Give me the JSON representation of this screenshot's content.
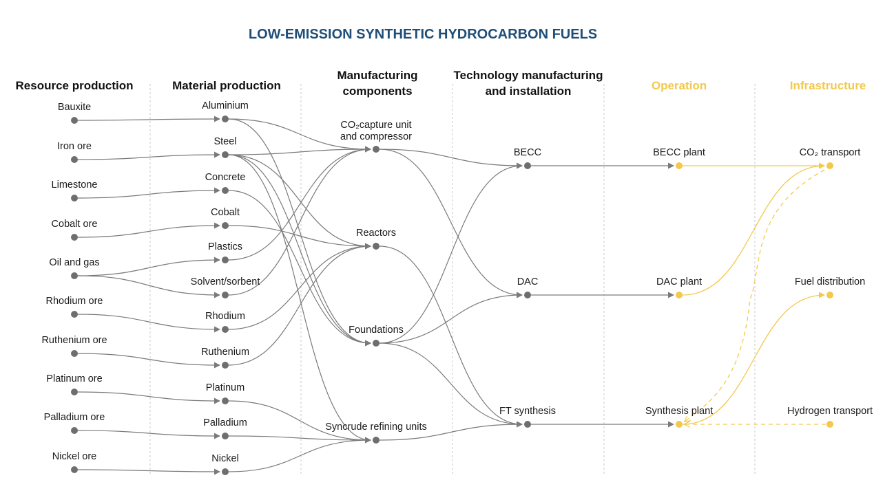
{
  "title": "LOW-EMISSION SYNTHETIC HYDROCARBON FUELS",
  "columns": [
    {
      "id": "resource",
      "lines": [
        "Resource production"
      ],
      "color": "#111111"
    },
    {
      "id": "material",
      "lines": [
        "Material production"
      ],
      "color": "#111111"
    },
    {
      "id": "components",
      "lines": [
        "Manufacturing",
        "components"
      ],
      "color": "#111111"
    },
    {
      "id": "technology",
      "lines": [
        "Technology manufacturing",
        "and installation"
      ],
      "color": "#111111"
    },
    {
      "id": "operation",
      "lines": [
        "Operation"
      ],
      "color": "#f2c94c"
    },
    {
      "id": "infrastructure",
      "lines": [
        "Infrastructure"
      ],
      "color": "#f2c94c"
    }
  ],
  "nodes": [
    {
      "id": "bauxite",
      "label": "Bauxite",
      "column": "resource"
    },
    {
      "id": "ironore",
      "label": "Iron ore",
      "column": "resource"
    },
    {
      "id": "limestone",
      "label": "Limestone",
      "column": "resource"
    },
    {
      "id": "cobaltore",
      "label": "Cobalt ore",
      "column": "resource"
    },
    {
      "id": "oilgas",
      "label": "Oil and gas",
      "column": "resource"
    },
    {
      "id": "rhodiumore",
      "label": "Rhodium ore",
      "column": "resource"
    },
    {
      "id": "rutheniumore",
      "label": "Ruthenium ore",
      "column": "resource"
    },
    {
      "id": "platinumore",
      "label": "Platinum ore",
      "column": "resource"
    },
    {
      "id": "palladiumore",
      "label": "Palladium ore",
      "column": "resource"
    },
    {
      "id": "nickelore",
      "label": "Nickel ore",
      "column": "resource"
    },
    {
      "id": "aluminium",
      "label": "Aluminium",
      "column": "material"
    },
    {
      "id": "steel",
      "label": "Steel",
      "column": "material"
    },
    {
      "id": "concrete",
      "label": "Concrete",
      "column": "material"
    },
    {
      "id": "cobalt",
      "label": "Cobalt",
      "column": "material"
    },
    {
      "id": "plastics",
      "label": "Plastics",
      "column": "material"
    },
    {
      "id": "solvent",
      "label": "Solvent/sorbent",
      "column": "material"
    },
    {
      "id": "rhodium",
      "label": "Rhodium",
      "column": "material"
    },
    {
      "id": "ruthenium",
      "label": "Ruthenium",
      "column": "material"
    },
    {
      "id": "platinum",
      "label": "Platinum",
      "column": "material"
    },
    {
      "id": "palladium",
      "label": "Palladium",
      "column": "material"
    },
    {
      "id": "nickel",
      "label": "Nickel",
      "column": "material"
    },
    {
      "id": "co2capture",
      "lines": [
        "CO₂capture unit",
        "and compressor"
      ],
      "column": "components"
    },
    {
      "id": "reactors",
      "label": "Reactors",
      "column": "components"
    },
    {
      "id": "foundations",
      "label": "Foundations",
      "column": "components"
    },
    {
      "id": "syncrude",
      "label": "Syncrude refining units",
      "column": "components"
    },
    {
      "id": "becc",
      "label": "BECC",
      "column": "technology"
    },
    {
      "id": "dac",
      "label": "DAC",
      "column": "technology"
    },
    {
      "id": "ftsynthesis",
      "label": "FT synthesis",
      "column": "technology"
    },
    {
      "id": "beccplant",
      "label": "BECC plant",
      "column": "operation",
      "color": "#f2c94c"
    },
    {
      "id": "dacplant",
      "label": "DAC plant",
      "column": "operation",
      "color": "#f2c94c"
    },
    {
      "id": "synthesisplant",
      "label": "Synthesis plant",
      "column": "operation",
      "color": "#f2c94c"
    },
    {
      "id": "co2transport",
      "label": "CO₂ transport",
      "column": "infrastructure",
      "color": "#f2c94c"
    },
    {
      "id": "fueldistribution",
      "label": "Fuel distribution",
      "column": "infrastructure",
      "color": "#f2c94c"
    },
    {
      "id": "hydrogentransport",
      "label": "Hydrogen transport",
      "column": "infrastructure",
      "color": "#f2c94c"
    }
  ],
  "edges": [
    {
      "from": "bauxite",
      "to": "aluminium"
    },
    {
      "from": "ironore",
      "to": "steel"
    },
    {
      "from": "limestone",
      "to": "concrete"
    },
    {
      "from": "cobaltore",
      "to": "cobalt"
    },
    {
      "from": "oilgas",
      "to": "plastics"
    },
    {
      "from": "oilgas",
      "to": "solvent"
    },
    {
      "from": "rhodiumore",
      "to": "rhodium"
    },
    {
      "from": "rutheniumore",
      "to": "ruthenium"
    },
    {
      "from": "platinumore",
      "to": "platinum"
    },
    {
      "from": "palladiumore",
      "to": "palladium"
    },
    {
      "from": "nickelore",
      "to": "nickel"
    },
    {
      "from": "aluminium",
      "to": "co2capture"
    },
    {
      "from": "aluminium",
      "to": "foundations"
    },
    {
      "from": "steel",
      "to": "co2capture"
    },
    {
      "from": "steel",
      "to": "reactors"
    },
    {
      "from": "steel",
      "to": "foundations"
    },
    {
      "from": "steel",
      "to": "syncrude"
    },
    {
      "from": "concrete",
      "to": "foundations"
    },
    {
      "from": "cobalt",
      "to": "reactors"
    },
    {
      "from": "plastics",
      "to": "co2capture"
    },
    {
      "from": "solvent",
      "to": "co2capture"
    },
    {
      "from": "rhodium",
      "to": "reactors"
    },
    {
      "from": "ruthenium",
      "to": "reactors"
    },
    {
      "from": "platinum",
      "to": "syncrude"
    },
    {
      "from": "palladium",
      "to": "syncrude"
    },
    {
      "from": "nickel",
      "to": "syncrude"
    },
    {
      "from": "co2capture",
      "to": "becc"
    },
    {
      "from": "co2capture",
      "to": "dac"
    },
    {
      "from": "reactors",
      "to": "ftsynthesis"
    },
    {
      "from": "foundations",
      "to": "becc"
    },
    {
      "from": "foundations",
      "to": "dac"
    },
    {
      "from": "foundations",
      "to": "ftsynthesis"
    },
    {
      "from": "syncrude",
      "to": "ftsynthesis"
    },
    {
      "from": "becc",
      "to": "beccplant"
    },
    {
      "from": "dac",
      "to": "dacplant"
    },
    {
      "from": "ftsynthesis",
      "to": "synthesisplant"
    },
    {
      "from": "beccplant",
      "to": "co2transport",
      "color": "#f2c94c"
    },
    {
      "from": "dacplant",
      "to": "co2transport",
      "color": "#f2c94c"
    },
    {
      "from": "synthesisplant",
      "to": "fueldistribution",
      "color": "#f2c94c"
    },
    {
      "from": "co2transport",
      "to": "synthesisplant",
      "color": "#f2c94c",
      "style": "dashed"
    },
    {
      "from": "hydrogentransport",
      "to": "synthesisplant",
      "color": "#f2c94c",
      "style": "dashed"
    }
  ]
}
